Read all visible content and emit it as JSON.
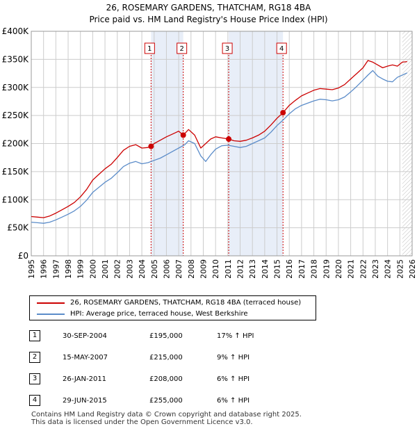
{
  "title": "26, ROSEMARY GARDENS, THATCHAM, RG18 4BA",
  "subtitle": "Price paid vs. HM Land Registry's House Price Index (HPI)",
  "colors": {
    "property": "#cc0000",
    "hpi": "#5b8cc9",
    "shade": "#e8eef8",
    "grid": "#cccccc"
  },
  "chart_data": {
    "type": "line",
    "ylim": [
      0,
      400000
    ],
    "xlim": [
      1995,
      2026
    ],
    "y_ticks": [
      "£0",
      "£50K",
      "£100K",
      "£150K",
      "£200K",
      "£250K",
      "£300K",
      "£350K",
      "£400K"
    ],
    "y_tick_values": [
      0,
      50000,
      100000,
      150000,
      200000,
      250000,
      300000,
      350000,
      400000
    ],
    "x_ticks": [
      "1995",
      "1996",
      "1997",
      "1998",
      "1999",
      "2000",
      "2001",
      "2002",
      "2003",
      "2004",
      "2005",
      "2006",
      "2007",
      "2008",
      "2009",
      "2010",
      "2011",
      "2012",
      "2013",
      "2014",
      "2015",
      "2016",
      "2017",
      "2018",
      "2019",
      "2020",
      "2021",
      "2022",
      "2023",
      "2024",
      "2025",
      "2026"
    ],
    "series": [
      {
        "name": "26, ROSEMARY GARDENS, THATCHAM, RG18 4BA (terraced house)",
        "x": [
          1995.0,
          1995.5,
          1996.0,
          1996.5,
          1997.0,
          1997.5,
          1998.0,
          1998.5,
          1999.0,
          1999.5,
          2000.0,
          2000.5,
          2001.0,
          2001.5,
          2002.0,
          2002.5,
          2003.0,
          2003.5,
          2004.0,
          2004.5,
          2004.75,
          2005.0,
          2005.5,
          2006.0,
          2006.5,
          2007.0,
          2007.37,
          2007.8,
          2008.3,
          2008.8,
          2009.2,
          2009.6,
          2010.0,
          2010.5,
          2011.07,
          2011.5,
          2012.0,
          2012.5,
          2013.0,
          2013.5,
          2014.0,
          2014.5,
          2015.0,
          2015.49,
          2016.0,
          2016.5,
          2017.0,
          2017.5,
          2018.0,
          2018.5,
          2019.0,
          2019.5,
          2020.0,
          2020.5,
          2021.0,
          2021.5,
          2022.0,
          2022.4,
          2022.8,
          2023.2,
          2023.6,
          2024.0,
          2024.4,
          2024.8,
          2025.2,
          2025.6
        ],
        "values": [
          70000,
          69000,
          68000,
          71000,
          76000,
          82000,
          88000,
          95000,
          105000,
          118000,
          135000,
          145000,
          155000,
          163000,
          175000,
          188000,
          195000,
          198000,
          192000,
          193000,
          195000,
          200000,
          206000,
          212000,
          217000,
          222000,
          215000,
          225000,
          215000,
          192000,
          200000,
          208000,
          212000,
          210000,
          208000,
          205000,
          204000,
          206000,
          210000,
          215000,
          222000,
          233000,
          245000,
          255000,
          268000,
          277000,
          285000,
          290000,
          295000,
          298000,
          297000,
          296000,
          299000,
          305000,
          315000,
          325000,
          335000,
          348000,
          345000,
          340000,
          335000,
          338000,
          340000,
          338000,
          345000,
          346000
        ]
      },
      {
        "name": "HPI: Average price, terraced house, West Berkshire",
        "x": [
          1995.0,
          1995.5,
          1996.0,
          1996.5,
          1997.0,
          1997.5,
          1998.0,
          1998.5,
          1999.0,
          1999.5,
          2000.0,
          2000.5,
          2001.0,
          2001.5,
          2002.0,
          2002.5,
          2003.0,
          2003.5,
          2004.0,
          2004.5,
          2005.0,
          2005.5,
          2006.0,
          2006.5,
          2007.0,
          2007.5,
          2007.8,
          2008.3,
          2008.8,
          2009.2,
          2009.6,
          2010.0,
          2010.5,
          2011.0,
          2011.5,
          2012.0,
          2012.5,
          2013.0,
          2013.5,
          2014.0,
          2014.5,
          2015.0,
          2015.5,
          2016.0,
          2016.5,
          2017.0,
          2017.5,
          2018.0,
          2018.5,
          2019.0,
          2019.5,
          2020.0,
          2020.5,
          2021.0,
          2021.5,
          2022.0,
          2022.4,
          2022.8,
          2023.2,
          2023.6,
          2024.0,
          2024.4,
          2024.8,
          2025.2,
          2025.6
        ],
        "values": [
          60000,
          59000,
          58000,
          60000,
          64000,
          69000,
          74000,
          80000,
          88000,
          99000,
          113000,
          122000,
          131000,
          138000,
          148000,
          159000,
          165000,
          168000,
          164000,
          166000,
          170000,
          174000,
          180000,
          186000,
          192000,
          198000,
          205000,
          200000,
          178000,
          168000,
          180000,
          190000,
          196000,
          197000,
          195000,
          193000,
          195000,
          200000,
          205000,
          210000,
          220000,
          232000,
          242000,
          253000,
          262000,
          268000,
          272000,
          276000,
          279000,
          278000,
          276000,
          278000,
          283000,
          292000,
          302000,
          313000,
          322000,
          330000,
          320000,
          315000,
          311000,
          310000,
          318000,
          322000,
          326000
        ]
      }
    ],
    "sales": [
      {
        "label": "1",
        "x": 2004.75,
        "value": 195000
      },
      {
        "label": "2",
        "x": 2007.37,
        "value": 215000
      },
      {
        "label": "3",
        "x": 2011.07,
        "value": 208000
      },
      {
        "label": "4",
        "x": 2015.49,
        "value": 255000
      }
    ],
    "shaded_ranges": [
      [
        2004.75,
        2007.37
      ],
      [
        2011.07,
        2015.49
      ]
    ],
    "hatch_from": 2025.2
  },
  "legend": {
    "property": "26, ROSEMARY GARDENS, THATCHAM, RG18 4BA (terraced house)",
    "hpi": "HPI: Average price, terraced house, West Berkshire"
  },
  "transactions": [
    {
      "num": "1",
      "date": "30-SEP-2004",
      "price": "£195,000",
      "hpi": "17% ↑ HPI"
    },
    {
      "num": "2",
      "date": "15-MAY-2007",
      "price": "£215,000",
      "hpi": "9% ↑ HPI"
    },
    {
      "num": "3",
      "date": "26-JAN-2011",
      "price": "£208,000",
      "hpi": "6% ↑ HPI"
    },
    {
      "num": "4",
      "date": "29-JUN-2015",
      "price": "£255,000",
      "hpi": "6% ↑ HPI"
    }
  ],
  "footer": {
    "line1": "Contains HM Land Registry data © Crown copyright and database right 2025.",
    "line2": "This data is licensed under the Open Government Licence v3.0."
  }
}
